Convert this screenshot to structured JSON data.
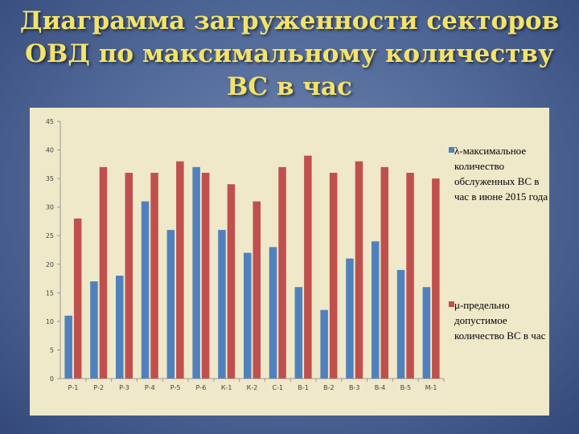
{
  "title_lines": [
    "Диаграмма загруженности секторов",
    "ОВД по максимальному количеству",
    "ВС в час"
  ],
  "chart_data": {
    "type": "bar",
    "categories": [
      "Р-1",
      "Р-2",
      "Р-3",
      "Р-4",
      "Р-5",
      "Р-6",
      "К-1",
      "К-2",
      "С-1",
      "В-1",
      "В-2",
      "В-3",
      "В-4",
      "В-5",
      "М-1"
    ],
    "series": [
      {
        "name": "λ-максимальное количество обслуженных ВС в час в июне 2015 года",
        "color": "#4f81bd",
        "values": [
          11,
          17,
          18,
          31,
          26,
          37,
          26,
          22,
          23,
          16,
          12,
          21,
          24,
          19,
          16
        ]
      },
      {
        "name": "μ-предельно допустимое количество ВС в час",
        "color": "#c0504d",
        "values": [
          28,
          37,
          36,
          36,
          38,
          36,
          34,
          31,
          37,
          39,
          36,
          38,
          37,
          36,
          35
        ]
      }
    ],
    "ylim": [
      0,
      45
    ],
    "yticks": [
      0,
      5,
      10,
      15,
      20,
      25,
      30,
      35,
      40,
      45
    ],
    "grid": false,
    "legend_position": "right"
  }
}
